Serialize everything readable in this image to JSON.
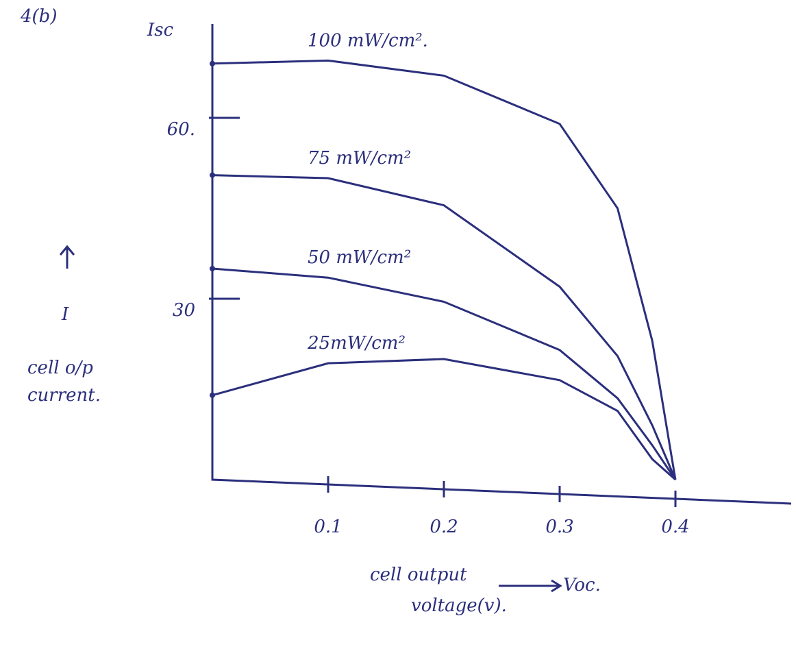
{
  "chart_data": {
    "type": "line",
    "title": "4(b)",
    "y_top_label": "Isc",
    "ylabel": "I",
    "ylabel_description": [
      "cell o/p",
      "current."
    ],
    "xlabel": [
      "cell output",
      "voltage(v)."
    ],
    "x_arrow_label": "Voc.",
    "x": [
      0,
      0.1,
      0.2,
      0.3,
      0.35,
      0.38,
      0.4
    ],
    "series": [
      {
        "name": "100 mW/cm².",
        "color": "#2b2f7c",
        "values": [
          69,
          69.5,
          67,
          59,
          45,
          23,
          0
        ]
      },
      {
        "name": "75 mW/cm²",
        "color": "#2b2f7c",
        "values": [
          50.5,
          50,
          45.5,
          32,
          20.5,
          9,
          0
        ]
      },
      {
        "name": "50 mW/cm²",
        "color": "#2b2f7c",
        "values": [
          35,
          33.5,
          29.5,
          21.5,
          13.5,
          5.7,
          0
        ]
      },
      {
        "name": "25mW/cm²",
        "color": "#2b2f7c",
        "values": [
          14,
          19.3,
          20,
          16.5,
          11.4,
          3.4,
          0
        ]
      }
    ],
    "xlim": [
      0,
      0.5
    ],
    "ylim": [
      0,
      75
    ],
    "xticks": [
      0.1,
      0.2,
      0.3,
      0.4
    ],
    "yticks": [
      30,
      {
        "value": 60,
        "label": "60."
      }
    ]
  }
}
